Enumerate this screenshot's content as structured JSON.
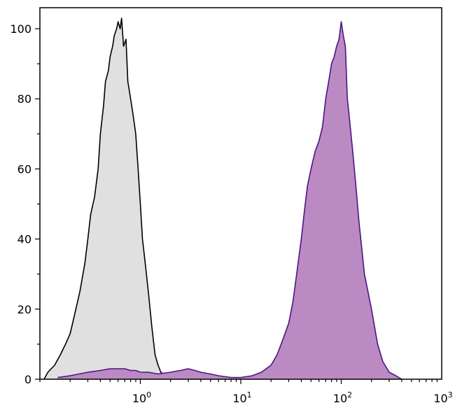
{
  "chart_data": {
    "type": "area",
    "title": "",
    "xlabel": "",
    "ylabel": "",
    "x_scale": "log",
    "xlim": [
      0.1,
      1000
    ],
    "ylim": [
      0,
      106
    ],
    "grid": false,
    "x_ticks": [
      {
        "value": 1,
        "base": "10",
        "exp": "0"
      },
      {
        "value": 10,
        "base": "10",
        "exp": "1"
      },
      {
        "value": 100,
        "base": "10",
        "exp": "2"
      },
      {
        "value": 1000,
        "base": "10",
        "exp": "3"
      }
    ],
    "y_ticks": [
      {
        "value": 0,
        "label": "0"
      },
      {
        "value": 20,
        "label": "20"
      },
      {
        "value": 40,
        "label": "40"
      },
      {
        "value": 60,
        "label": "60"
      },
      {
        "value": 80,
        "label": "80"
      },
      {
        "value": 100,
        "label": "100"
      }
    ],
    "series": [
      {
        "fill": "#e0e0e0",
        "stroke": "#000000",
        "x": [
          0.11,
          0.12,
          0.14,
          0.16,
          0.18,
          0.2,
          0.22,
          0.25,
          0.28,
          0.3,
          0.32,
          0.35,
          0.38,
          0.4,
          0.43,
          0.45,
          0.48,
          0.5,
          0.53,
          0.55,
          0.58,
          0.6,
          0.63,
          0.65,
          0.68,
          0.7,
          0.72,
          0.75,
          0.78,
          0.8,
          0.85,
          0.9,
          0.95,
          1.0,
          1.05,
          1.1,
          1.2,
          1.3,
          1.4,
          1.5,
          1.6,
          1.8,
          2.0
        ],
        "y": [
          0,
          2,
          4,
          7,
          10,
          13,
          18,
          25,
          33,
          40,
          47,
          52,
          60,
          70,
          78,
          85,
          88,
          92,
          95,
          98,
          100,
          102,
          100,
          103,
          95,
          96,
          97,
          85,
          82,
          80,
          75,
          70,
          60,
          50,
          40,
          35,
          25,
          15,
          7,
          4,
          2,
          1,
          0
        ]
      },
      {
        "fill": "#bc8ac2",
        "stroke": "#4b1583",
        "x": [
          0.15,
          0.2,
          0.3,
          0.4,
          0.5,
          0.6,
          0.7,
          0.8,
          0.9,
          1.0,
          1.2,
          1.5,
          2.0,
          2.5,
          3.0,
          3.5,
          4.0,
          5.0,
          6.0,
          8.0,
          10,
          13,
          16,
          20,
          23,
          26,
          30,
          33,
          36,
          40,
          43,
          46,
          50,
          55,
          60,
          65,
          70,
          75,
          80,
          85,
          90,
          95,
          100,
          105,
          110,
          115,
          120,
          130,
          140,
          150,
          170,
          200,
          230,
          260,
          300,
          350,
          400
        ],
        "y": [
          0.5,
          1,
          2,
          2.5,
          3,
          3,
          3,
          2.5,
          2.5,
          2,
          2,
          1.5,
          2,
          2.5,
          3,
          2.5,
          2,
          1.5,
          1,
          0.5,
          0.5,
          1,
          2,
          4,
          7,
          11,
          16,
          22,
          30,
          40,
          48,
          55,
          60,
          65,
          68,
          72,
          80,
          85,
          90,
          92,
          95,
          97,
          102,
          98,
          95,
          80,
          75,
          65,
          55,
          45,
          30,
          20,
          10,
          5,
          2,
          1,
          0
        ]
      }
    ]
  }
}
